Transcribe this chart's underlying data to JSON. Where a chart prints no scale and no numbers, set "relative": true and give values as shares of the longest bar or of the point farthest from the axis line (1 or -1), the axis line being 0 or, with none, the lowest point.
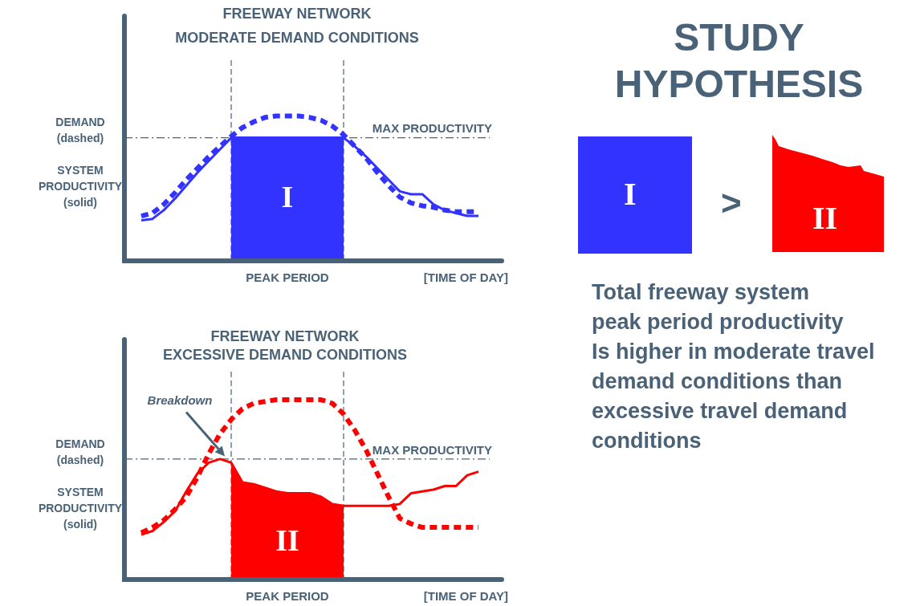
{
  "chart_data": [
    {
      "type": "line",
      "title": "FREEWAY NETWORK",
      "subtitle": "MODERATE DEMAND CONDITIONS",
      "xlabel": "[TIME OF DAY]",
      "ylabel": "DEMAND\n(dashed)\n\nSYSTEM\nPRODUCTIVITY\n(solid)",
      "relative": true,
      "legend": false,
      "tick_labels": false,
      "marker": "none",
      "categories": [
        null,
        null,
        null,
        null,
        null,
        null,
        null,
        null,
        null,
        null,
        null,
        null,
        null,
        null,
        null,
        null,
        null,
        null,
        null,
        null,
        null,
        null,
        null,
        null,
        null,
        null,
        null,
        null,
        null,
        null,
        null
      ],
      "series": [
        {
          "type": "line",
          "line_style": "dashed",
          "color": "#3333ff",
          "values": [
            0.31,
            0.33,
            0.39,
            0.47,
            0.56,
            0.64,
            0.72,
            0.79,
            0.86,
            0.92,
            0.96,
            0.99,
            1,
            1,
            1,
            0.99,
            0.97,
            0.93,
            0.87,
            0.79,
            0.71,
            0.61,
            0.52,
            0.44,
            0.4,
            0.38,
            0.37,
            0.35,
            0.34,
            0.34,
            0.34
          ]
        },
        {
          "type": "line",
          "line_style": "solid",
          "color": "#3333ff",
          "values": [
            0.28,
            0.29,
            0.35,
            0.43,
            0.52,
            0.61,
            0.69,
            0.77,
            0.85,
            0.85,
            0.85,
            0.85,
            0.85,
            0.85,
            0.85,
            0.85,
            0.85,
            0.85,
            0.85,
            0.79,
            0.72,
            0.64,
            0.56,
            0.48,
            0.46,
            0.46,
            0.39,
            0.35,
            0.33,
            0.31,
            0.31
          ]
        },
        {
          "type": "area",
          "color": "#3333ff",
          "values": [
            null,
            null,
            null,
            null,
            null,
            null,
            null,
            null,
            0.85,
            0.85,
            0.85,
            0.85,
            0.85,
            0.85,
            0.85,
            0.85,
            0.85,
            0.85,
            0.85,
            null,
            null,
            null,
            null,
            null,
            null,
            null,
            null,
            null,
            null,
            null,
            null
          ]
        }
      ],
      "ref_lines": [
        {
          "axis": "y",
          "value": 0.85,
          "label": "MAX PRODUCTIVITY",
          "line_style": "dashed"
        }
      ],
      "annotations": [
        "I",
        "PEAK PERIOD"
      ]
    },
    {
      "type": "line",
      "title": "FREEWAY NETWORK",
      "subtitle": "EXCESSIVE DEMAND CONDITIONS",
      "xlabel": "[TIME OF DAY]",
      "ylabel": "DEMAND\n(dashed)\n\nSYSTEM\nPRODUCTIVITY\n(solid)",
      "relative": true,
      "legend": false,
      "tick_labels": false,
      "marker": "none",
      "categories": [
        null,
        null,
        null,
        null,
        null,
        null,
        null,
        null,
        null,
        null,
        null,
        null,
        null,
        null,
        null,
        null,
        null,
        null,
        null,
        null,
        null,
        null,
        null,
        null,
        null,
        null,
        null,
        null,
        null,
        null,
        null
      ],
      "series": [
        {
          "type": "line",
          "line_style": "dashed",
          "color": "#ff0000",
          "values": [
            0.26,
            0.29,
            0.33,
            0.39,
            0.46,
            0.57,
            0.7,
            0.81,
            0.89,
            0.95,
            0.98,
            0.99,
            1,
            1,
            1,
            1,
            1,
            0.98,
            0.92,
            0.83,
            0.72,
            0.59,
            0.46,
            0.34,
            0.31,
            0.29,
            0.29,
            0.29,
            0.29,
            0.29,
            0.29
          ]
        },
        {
          "type": "line",
          "line_style": "solid",
          "color": "#ff0000",
          "values": [
            0.25,
            0.27,
            0.32,
            0.38,
            0.49,
            0.59,
            0.65,
            0.67,
            0.65,
            0.54,
            0.53,
            0.51,
            0.49,
            0.48,
            0.48,
            0.48,
            0.46,
            0.42,
            0.41,
            0.41,
            0.41,
            0.41,
            0.41,
            0.42,
            0.48,
            0.49,
            0.5,
            0.52,
            0.52,
            0.58,
            0.6
          ]
        },
        {
          "type": "area",
          "color": "#ff0000",
          "values": [
            null,
            null,
            null,
            null,
            null,
            null,
            null,
            null,
            0.65,
            0.54,
            0.53,
            0.51,
            0.49,
            0.48,
            0.48,
            0.48,
            0.46,
            0.42,
            0.41,
            null,
            null,
            null,
            null,
            null,
            null,
            null,
            null,
            null,
            null,
            null,
            null
          ]
        }
      ],
      "ref_lines": [
        {
          "axis": "y",
          "value": 0.67,
          "label": "MAX PRODUCTIVITY",
          "line_style": "dashed"
        }
      ],
      "annotations": [
        "II",
        "PEAK PERIOD",
        "Breakdown"
      ]
    },
    {
      "type": "other",
      "title": "STUDY HYPOTHESIS",
      "annotations": [
        "I",
        ">",
        "II",
        "Total freeway system\npeak period productivity\nIs higher in moderate travel\ndemand conditions than\nexcessive travel demand\nconditions"
      ]
    }
  ]
}
